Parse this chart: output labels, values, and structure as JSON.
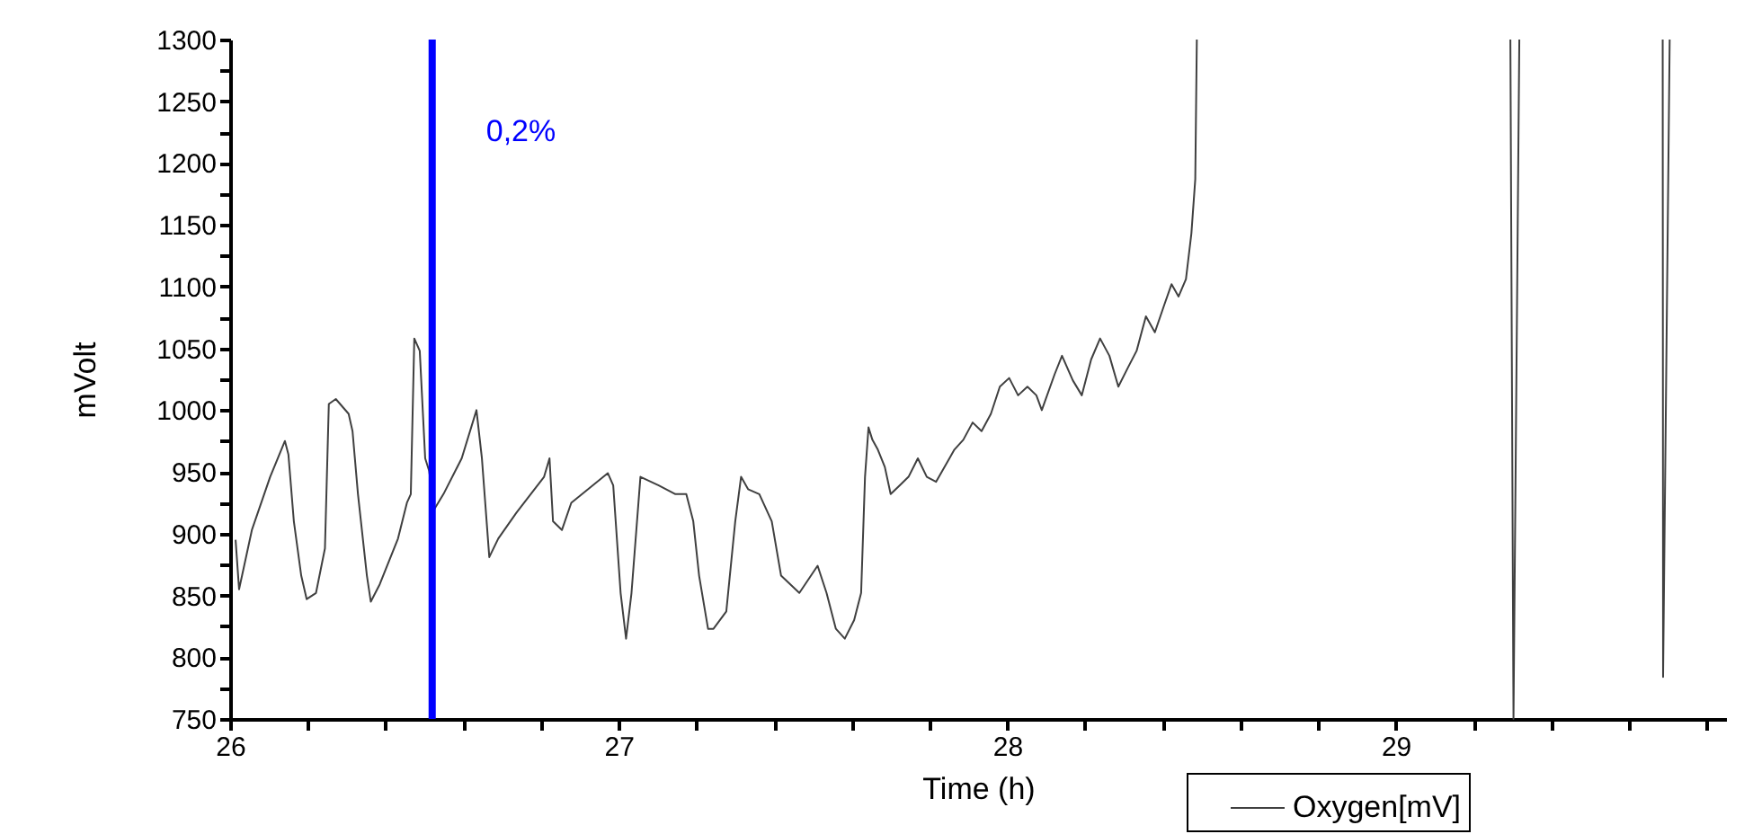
{
  "chart_data": {
    "type": "line",
    "xlabel": "Time (h)",
    "ylabel": "mVolt",
    "xlim": [
      26,
      29.85
    ],
    "ylim": [
      750,
      1300
    ],
    "xticks": [
      26,
      {
        "value": 26.2,
        "label": null
      },
      {
        "value": 26.4,
        "label": null
      },
      {
        "value": 26.6,
        "label": null
      },
      {
        "value": 26.8,
        "label": null
      },
      27,
      {
        "value": 27.2,
        "label": null
      },
      {
        "value": 27.4,
        "label": null
      },
      {
        "value": 27.6,
        "label": null
      },
      {
        "value": 27.8,
        "label": null
      },
      28,
      {
        "value": 28.2,
        "label": null
      },
      {
        "value": 28.4,
        "label": null
      },
      {
        "value": 28.6,
        "label": null
      },
      {
        "value": 28.8,
        "label": null
      },
      29,
      {
        "value": 29.2,
        "label": null
      },
      {
        "value": 29.4,
        "label": null
      },
      {
        "value": 29.6,
        "label": null
      },
      {
        "value": 29.8,
        "label": null
      }
    ],
    "yticks": [
      750,
      {
        "value": 775,
        "label": null
      },
      800,
      {
        "value": 825,
        "label": null
      },
      850,
      {
        "value": 875,
        "label": null
      },
      900,
      {
        "value": 925,
        "label": null
      },
      950,
      {
        "value": 975,
        "label": null
      },
      1000,
      {
        "value": 1025,
        "label": null
      },
      1050,
      {
        "value": 1075,
        "label": null
      },
      1100,
      {
        "value": 1125,
        "label": null
      },
      1150,
      {
        "value": 1175,
        "label": null
      },
      1200,
      {
        "value": 1225,
        "label": null
      },
      1250,
      {
        "value": 1275,
        "label": null
      },
      1300
    ],
    "grid": false,
    "legend": "bottom right",
    "ref_lines": [
      {
        "axis": "x",
        "value": 26.52,
        "color": "#0000ff"
      }
    ],
    "annotations": [
      {
        "text": "0,2%",
        "x": 26.52,
        "y": 1225
      }
    ],
    "series": [
      {
        "name": "Oxygen[mV]",
        "color": "#404040",
        "x": [
          26.014,
          26.023,
          26.056,
          26.103,
          26.141,
          26.15,
          26.164,
          26.183,
          26.197,
          26.221,
          26.244,
          26.254,
          26.272,
          26.305,
          26.315,
          26.329,
          26.352,
          26.362,
          26.385,
          26.432,
          26.455,
          26.465,
          26.474,
          26.488,
          26.502,
          26.512,
          26.526,
          26.549,
          26.596,
          26.634,
          26.648,
          26.667,
          26.69,
          26.737,
          26.808,
          26.822,
          26.831,
          26.854,
          26.878,
          26.972,
          26.986,
          27.005,
          27.019,
          27.033,
          27.056,
          27.103,
          27.146,
          27.174,
          27.192,
          27.207,
          27.23,
          27.244,
          27.277,
          27.3,
          27.315,
          27.333,
          27.362,
          27.394,
          27.418,
          27.465,
          27.512,
          27.535,
          27.559,
          27.582,
          27.606,
          27.624,
          27.634,
          27.643,
          27.653,
          27.667,
          27.685,
          27.7,
          27.723,
          27.746,
          27.77,
          27.793,
          27.817,
          27.864,
          27.887,
          27.911,
          27.934,
          27.958,
          27.981,
          28.005,
          28.028,
          28.052,
          28.075,
          28.089,
          28.122,
          28.141,
          28.169,
          28.192,
          28.216,
          28.239,
          28.263,
          28.286,
          28.31,
          28.333,
          28.357,
          28.38,
          28.404,
          28.423,
          28.441,
          28.46,
          28.474,
          28.484,
          28.488,
          28.9,
          29.295,
          29.303,
          29.318,
          29.5,
          29.687,
          29.688,
          29.705
        ],
        "values": [
          895,
          855,
          903,
          946,
          975,
          964,
          910,
          866,
          847,
          852,
          888,
          1005,
          1009,
          997,
          983,
          932,
          866,
          845,
          859,
          896,
          925,
          932,
          1058,
          1048,
          961,
          951,
          920,
          932,
          961,
          1000,
          961,
          881,
          896,
          917,
          946,
          961,
          910,
          903,
          925,
          949,
          939,
          852,
          815,
          852,
          946,
          939,
          932,
          932,
          910,
          866,
          823,
          823,
          837,
          910,
          946,
          936,
          932,
          910,
          866,
          852,
          874,
          852,
          823,
          815,
          830,
          852,
          946,
          986,
          976,
          968,
          954,
          932,
          939,
          946,
          961,
          946,
          942,
          968,
          976,
          990,
          983,
          997,
          1019,
          1026,
          1012,
          1019,
          1012,
          1000,
          1029,
          1044,
          1024,
          1012,
          1041,
          1058,
          1044,
          1019,
          1034,
          1048,
          1076,
          1063,
          1085,
          1102,
          1092,
          1106,
          1143,
          1187,
          1300,
          null,
          1300,
          750,
          1300,
          null,
          1300,
          784,
          1300
        ]
      }
    ]
  }
}
